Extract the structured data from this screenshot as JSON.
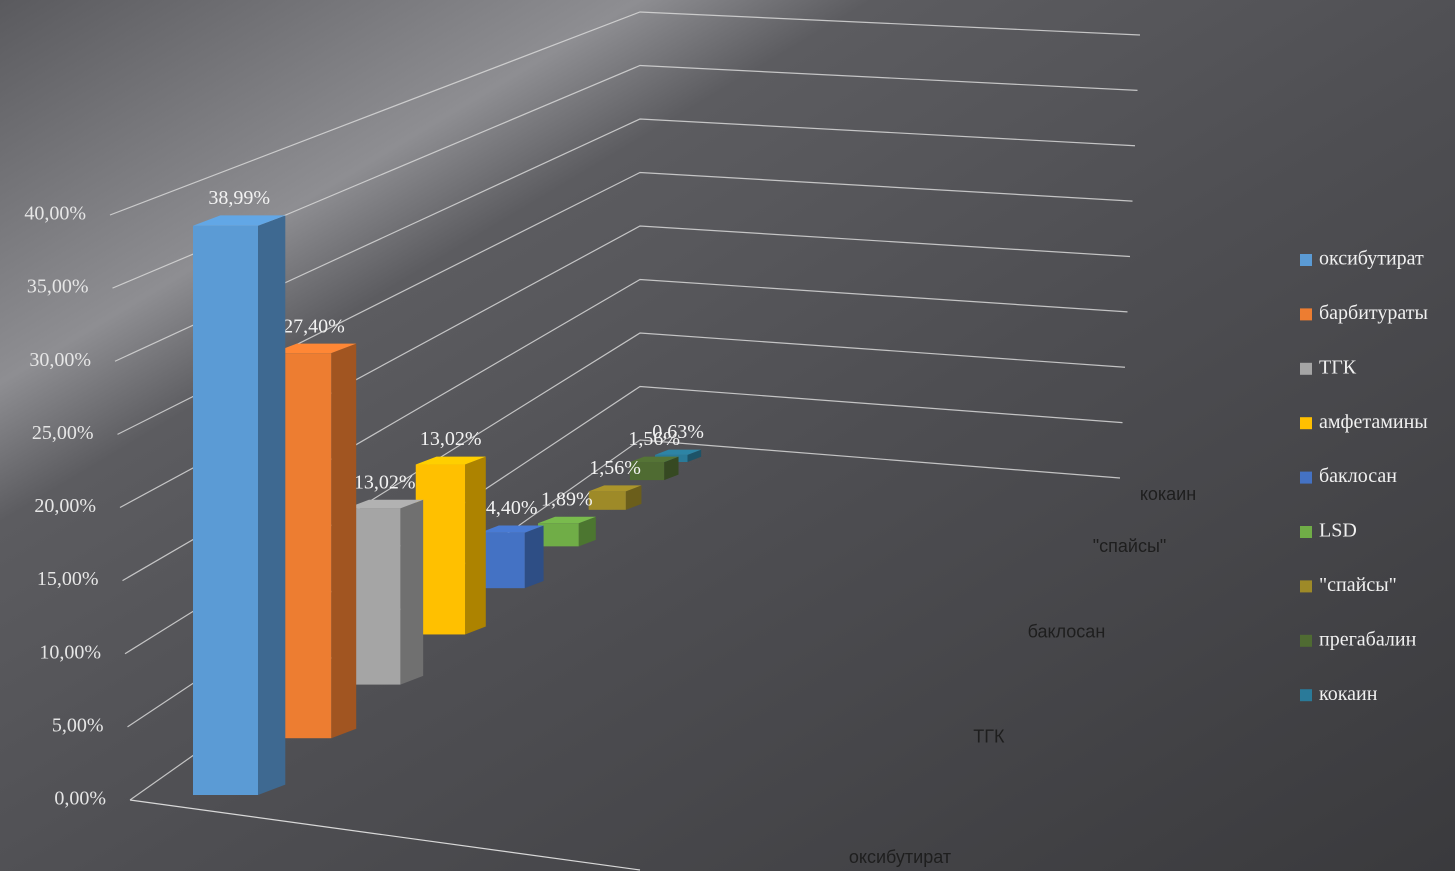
{
  "chart_data": {
    "type": "bar3d",
    "categories": [
      "оксибутират",
      "барбитураты",
      "ТГК",
      "амфетамины",
      "баклосан",
      "LSD",
      "\"спайсы\"",
      "прегабалин",
      "кокаин"
    ],
    "values": [
      38.99,
      27.4,
      13.02,
      13.02,
      4.4,
      1.89,
      1.56,
      1.56,
      0.63
    ],
    "value_labels": [
      "38,99%",
      "27,40%",
      "13,02%",
      "13,02%",
      "4,40%",
      "1,89%",
      "1,56%",
      "1,56%",
      "0,63%"
    ],
    "colors": [
      "#5b9bd5",
      "#ed7d31",
      "#a5a5a5",
      "#ffc000",
      "#4472c4",
      "#70ad47",
      "#9e8a28",
      "#4f6b32",
      "#2a7a99"
    ],
    "ylim": [
      0,
      40
    ],
    "yticks": [
      {
        "value": 0,
        "label": "0,00%"
      },
      {
        "value": 5,
        "label": "5,00%"
      },
      {
        "value": 10,
        "label": "10,00%"
      },
      {
        "value": 15,
        "label": "15,00%"
      },
      {
        "value": 20,
        "label": "20,00%"
      },
      {
        "value": 25,
        "label": "25,00%"
      },
      {
        "value": 30,
        "label": "30,00%"
      },
      {
        "value": 35,
        "label": "35,00%"
      },
      {
        "value": 40,
        "label": "40,00%"
      }
    ],
    "grid": true,
    "legend": "right"
  }
}
